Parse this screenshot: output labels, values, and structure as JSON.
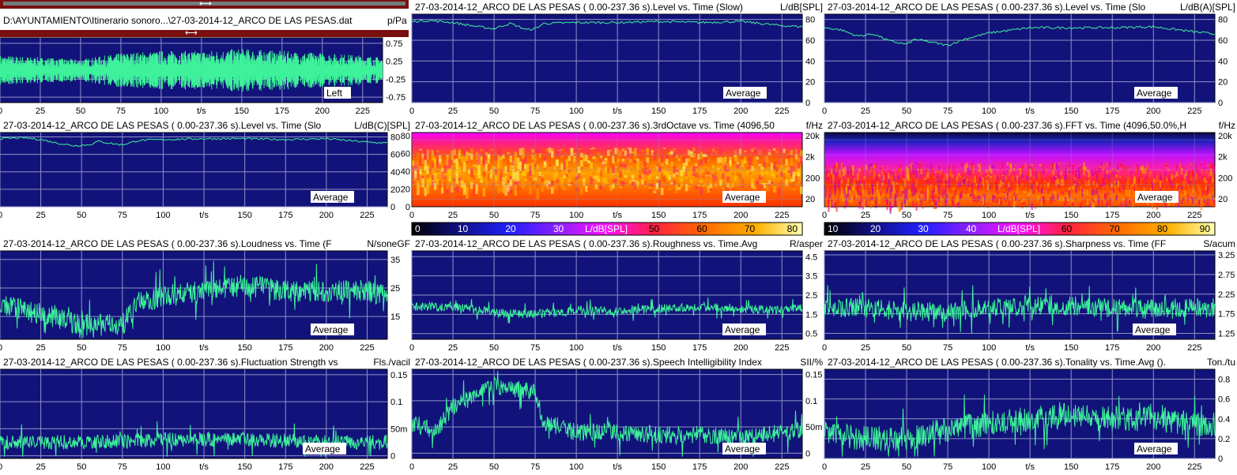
{
  "file": {
    "path": "D:\\AYUNTAMIENTO\\Itinerario sonoro...\\27-03-2014-12_ARCO DE LAS PESAS.dat",
    "unit": "p/Pa"
  },
  "colors": {
    "plot_bg": "#12137a",
    "trace": "#3df29a",
    "grid": "#8f92c8",
    "frame": "#000000"
  },
  "average_label": "Average",
  "x_unit": "t/s",
  "panels": [
    {
      "id": "waveform",
      "title": "",
      "unit": "",
      "badge": "Left"
    },
    {
      "id": "level_slow",
      "title": "27-03-2014-12_ARCO DE LAS PESAS ( 0.00-237.36 s).Level vs. Time (Slow)",
      "unit": "L/dB[SPL]",
      "badge": "Average"
    },
    {
      "id": "level_a",
      "title": "27-03-2014-12_ARCO DE LAS PESAS ( 0.00-237.36 s).Level vs. Time (Slo",
      "unit": "L/dB(A)[SPL]",
      "badge": "Average"
    },
    {
      "id": "level_c",
      "title": "27-03-2014-12_ARCO DE LAS PESAS ( 0.00-237.36 s).Level vs. Time (Slo",
      "unit": "L/dB(C)[SPL]",
      "badge": "Average"
    },
    {
      "id": "third_octave",
      "title": "27-03-2014-12_ARCO DE LAS PESAS ( 0.00-237.36 s).3rdOctave vs. Time (4096,50",
      "unit": "f/Hz",
      "badge": "Average"
    },
    {
      "id": "fft",
      "title": "27-03-2014-12_ARCO DE LAS PESAS ( 0.00-237.36 s).FFT vs. Time (4096,50.0%,H",
      "unit": "f/Hz",
      "badge": "Average"
    },
    {
      "id": "loudness",
      "title": "27-03-2014-12_ARCO DE LAS PESAS ( 0.00-237.36 s).Loudness vs. Time (F",
      "unit": "N/soneGF",
      "badge": "Average"
    },
    {
      "id": "roughness",
      "title": "27-03-2014-12_ARCO DE LAS PESAS ( 0.00-237.36 s).Roughness vs. Time.Avg",
      "unit": "R/asper",
      "badge": "Average"
    },
    {
      "id": "sharpness",
      "title": "27-03-2014-12_ARCO DE LAS PESAS ( 0.00-237.36 s).Sharpness vs. Time (FF",
      "unit": "S/acum",
      "badge": "Average"
    },
    {
      "id": "fluctuation",
      "title": "27-03-2014-12_ARCO DE LAS PESAS ( 0.00-237.36 s).Fluctuation Strength vs",
      "unit": "Fls./vacil",
      "badge": "Average"
    },
    {
      "id": "sii",
      "title": "27-03-2014-12_ARCO DE LAS PESAS ( 0.00-237.36 s).Speech Intelligibility Index",
      "unit": "SII/%",
      "badge": "Average"
    },
    {
      "id": "tonality",
      "title": "27-03-2014-12_ARCO DE LAS PESAS ( 0.00-237.36 s).Tonality vs. Time.Avg ().",
      "unit": "Ton./tu",
      "badge": "Average"
    }
  ],
  "colorbars": [
    {
      "id": "cb_third",
      "labels": [
        "0",
        "10",
        "20",
        "30",
        "L/dB[SPL]",
        "50",
        "60",
        "70",
        "80"
      ]
    },
    {
      "id": "cb_fft",
      "labels": [
        "10",
        "20",
        "30",
        "40",
        "L/dB[SPL]",
        "60",
        "70",
        "80",
        "90"
      ]
    }
  ],
  "chart_data": [
    {
      "type": "line",
      "id": "waveform",
      "x_label": "t/s",
      "x_range": [
        0,
        237.36
      ],
      "x_ticks": [
        "0",
        "25",
        "50",
        "75",
        "100",
        "t/s",
        "150",
        "175",
        "200",
        "225"
      ],
      "y_range": [
        -0.9,
        0.9
      ],
      "y_ticks": [
        "0.75",
        "0.25",
        "-0.25",
        "-0.75"
      ],
      "series": [
        {
          "name": "Left",
          "envelope": [
            [
              0,
              0.35
            ],
            [
              25,
              0.3
            ],
            [
              50,
              0.25
            ],
            [
              75,
              0.4
            ],
            [
              100,
              0.45
            ],
            [
              125,
              0.45
            ],
            [
              150,
              0.5
            ],
            [
              175,
              0.45
            ],
            [
              200,
              0.4
            ],
            [
              225,
              0.35
            ],
            [
              237,
              0.3
            ]
          ]
        }
      ]
    },
    {
      "type": "line",
      "id": "level_slow",
      "x_label": "t/s",
      "x_range": [
        0,
        237.36
      ],
      "x_ticks": [
        "0",
        "25",
        "50",
        "75",
        "100",
        "t/s",
        "150",
        "175",
        "200",
        "225"
      ],
      "y_range": [
        0,
        85
      ],
      "y_ticks": [
        "80",
        "60",
        "40",
        "20",
        "0"
      ],
      "series": [
        {
          "points": [
            [
              0,
              78
            ],
            [
              10,
              79
            ],
            [
              25,
              77
            ],
            [
              40,
              73
            ],
            [
              50,
              71
            ],
            [
              55,
              74
            ],
            [
              60,
              76
            ],
            [
              70,
              70
            ],
            [
              75,
              71
            ],
            [
              80,
              76
            ],
            [
              100,
              77
            ],
            [
              125,
              77
            ],
            [
              150,
              78
            ],
            [
              175,
              77
            ],
            [
              200,
              78
            ],
            [
              225,
              74
            ],
            [
              237,
              73
            ]
          ]
        }
      ]
    },
    {
      "type": "line",
      "id": "level_a",
      "x_label": "t/s",
      "x_range": [
        0,
        237.36
      ],
      "x_ticks": [
        "0",
        "25",
        "50",
        "75",
        "100",
        "t/s",
        "150",
        "175",
        "200",
        "225"
      ],
      "y_range": [
        0,
        85
      ],
      "y_ticks": [
        "80",
        "60",
        "40",
        "20",
        "0"
      ],
      "series": [
        {
          "points": [
            [
              0,
              72
            ],
            [
              10,
              70
            ],
            [
              20,
              64
            ],
            [
              30,
              66
            ],
            [
              40,
              59
            ],
            [
              50,
              56
            ],
            [
              55,
              61
            ],
            [
              65,
              58
            ],
            [
              75,
              55
            ],
            [
              85,
              61
            ],
            [
              100,
              67
            ],
            [
              125,
              72
            ],
            [
              150,
              72
            ],
            [
              175,
              72
            ],
            [
              200,
              73
            ],
            [
              225,
              68
            ],
            [
              237,
              66
            ]
          ]
        }
      ]
    },
    {
      "type": "line",
      "id": "level_c",
      "x_label": "t/s",
      "x_range": [
        0,
        237.36
      ],
      "x_ticks": [
        "0",
        "25",
        "50",
        "75",
        "100",
        "t/s",
        "150",
        "175",
        "200",
        "225"
      ],
      "y_range": [
        0,
        85
      ],
      "y_ticks": [
        "80",
        "60",
        "40",
        "20",
        "0"
      ],
      "series": [
        {
          "points": [
            [
              0,
              78
            ],
            [
              15,
              79
            ],
            [
              25,
              77
            ],
            [
              35,
              73
            ],
            [
              45,
              70
            ],
            [
              55,
              71
            ],
            [
              60,
              75
            ],
            [
              70,
              72
            ],
            [
              75,
              71
            ],
            [
              85,
              76
            ],
            [
              100,
              77
            ],
            [
              125,
              78
            ],
            [
              150,
              78
            ],
            [
              175,
              77
            ],
            [
              200,
              78
            ],
            [
              225,
              74
            ],
            [
              237,
              73
            ]
          ]
        }
      ]
    },
    {
      "type": "heatmap",
      "id": "third_octave",
      "x_label": "t/s",
      "x_range": [
        0,
        237.36
      ],
      "x_ticks": [
        "0",
        "25",
        "50",
        "75",
        "100",
        "t/s",
        "150",
        "175",
        "200",
        "225"
      ],
      "y_ticks": [
        "80",
        "60",
        "40",
        "20",
        "0"
      ],
      "y2_ticks": [
        "20k",
        "2k",
        "200",
        "20"
      ],
      "color_range": [
        0,
        80
      ]
    },
    {
      "type": "heatmap",
      "id": "fft",
      "x_label": "t/s",
      "x_range": [
        0,
        237.36
      ],
      "x_ticks": [
        "0",
        "25",
        "50",
        "75",
        "100",
        "t/s",
        "150",
        "175",
        "200",
        "225"
      ],
      "y2_ticks": [
        "20k",
        "2k",
        "200",
        "20"
      ],
      "color_range": [
        10,
        90
      ]
    },
    {
      "type": "line",
      "id": "loudness",
      "x_label": "t/s",
      "x_range": [
        0,
        237.36
      ],
      "x_ticks": [
        "0",
        "25",
        "50",
        "75",
        "100",
        "t/s",
        "150",
        "175",
        "200",
        "225"
      ],
      "y_range": [
        7,
        38
      ],
      "y_ticks": [
        "35",
        "25",
        "15"
      ],
      "series": [
        {
          "baseline": [
            [
              0,
              19
            ],
            [
              25,
              16
            ],
            [
              50,
              12
            ],
            [
              75,
              12
            ],
            [
              85,
              20
            ],
            [
              100,
              22
            ],
            [
              125,
              24
            ],
            [
              150,
              26
            ],
            [
              175,
              24
            ],
            [
              200,
              24
            ],
            [
              225,
              24
            ],
            [
              237,
              22
            ]
          ]
        }
      ]
    },
    {
      "type": "line",
      "id": "roughness",
      "x_label": "t/s",
      "x_range": [
        0,
        237.36
      ],
      "x_ticks": [
        "0",
        "25",
        "50",
        "75",
        "100",
        "t/s",
        "150",
        "175",
        "200",
        "225"
      ],
      "y_range": [
        0.2,
        4.8
      ],
      "y_ticks": [
        "4.5",
        "3.5",
        "2.5",
        "1.5",
        "0.5"
      ],
      "series": [
        {
          "baseline": [
            [
              0,
              1.9
            ],
            [
              25,
              1.9
            ],
            [
              50,
              1.6
            ],
            [
              75,
              1.5
            ],
            [
              100,
              1.7
            ],
            [
              125,
              1.7
            ],
            [
              150,
              1.8
            ],
            [
              175,
              1.9
            ],
            [
              200,
              1.8
            ],
            [
              225,
              1.7
            ],
            [
              237,
              1.8
            ]
          ]
        }
      ]
    },
    {
      "type": "line",
      "id": "sharpness",
      "x_label": "t/s",
      "x_range": [
        0,
        237.36
      ],
      "x_ticks": [
        "0",
        "25",
        "50",
        "75",
        "100",
        "t/s",
        "150",
        "175",
        "200",
        "225"
      ],
      "y_range": [
        1.1,
        3.35
      ],
      "y_ticks": [
        "3.25",
        "2.75",
        "2.25",
        "1.75",
        "1.25"
      ],
      "series": [
        {
          "baseline": [
            [
              0,
              1.9
            ],
            [
              25,
              1.9
            ],
            [
              50,
              1.8
            ],
            [
              75,
              1.8
            ],
            [
              100,
              1.9
            ],
            [
              125,
              1.95
            ],
            [
              150,
              1.95
            ],
            [
              175,
              1.9
            ],
            [
              200,
              1.9
            ],
            [
              225,
              1.9
            ],
            [
              237,
              1.9
            ]
          ]
        }
      ]
    },
    {
      "type": "line",
      "id": "fluctuation",
      "x_label": "t/s",
      "x_range": [
        0,
        237.36
      ],
      "x_ticks": [
        "0",
        "25",
        "50",
        "75",
        "100",
        "t/s",
        "150",
        "175",
        "200",
        "225"
      ],
      "y_range": [
        -0.005,
        0.16
      ],
      "y_ticks": [
        "0.15",
        "0.1",
        "50m",
        "0"
      ],
      "series": [
        {
          "baseline": [
            [
              0,
              0.025
            ],
            [
              50,
              0.025
            ],
            [
              100,
              0.03
            ],
            [
              150,
              0.03
            ],
            [
              200,
              0.025
            ],
            [
              237,
              0.025
            ]
          ]
        }
      ]
    },
    {
      "type": "line",
      "id": "sii",
      "x_label": "t/s",
      "x_range": [
        0,
        237.36
      ],
      "x_ticks": [
        "0",
        "25",
        "50",
        "75",
        "100",
        "t/s",
        "150",
        "175",
        "200",
        "225"
      ],
      "y_range": [
        -0.01,
        0.16
      ],
      "y_ticks": [
        "0.15",
        "0.1",
        "50m",
        "0"
      ],
      "series": [
        {
          "baseline": [
            [
              0,
              0.06
            ],
            [
              15,
              0.04
            ],
            [
              25,
              0.09
            ],
            [
              40,
              0.11
            ],
            [
              50,
              0.13
            ],
            [
              60,
              0.12
            ],
            [
              75,
              0.12
            ],
            [
              80,
              0.06
            ],
            [
              100,
              0.04
            ],
            [
              125,
              0.04
            ],
            [
              150,
              0.035
            ],
            [
              175,
              0.035
            ],
            [
              200,
              0.03
            ],
            [
              225,
              0.04
            ],
            [
              237,
              0.04
            ]
          ]
        }
      ]
    },
    {
      "type": "line",
      "id": "tonality",
      "x_label": "t/s",
      "x_range": [
        0,
        237.36
      ],
      "x_ticks": [
        "0",
        "25",
        "50",
        "75",
        "100",
        "t/s",
        "150",
        "175",
        "200",
        "225"
      ],
      "y_range": [
        0,
        0.9
      ],
      "y_ticks": [
        "0.8",
        "0.6",
        "0.4",
        "0.2",
        "0"
      ],
      "series": [
        {
          "baseline": [
            [
              0,
              0.25
            ],
            [
              25,
              0.2
            ],
            [
              50,
              0.2
            ],
            [
              75,
              0.3
            ],
            [
              100,
              0.35
            ],
            [
              125,
              0.4
            ],
            [
              150,
              0.45
            ],
            [
              175,
              0.4
            ],
            [
              200,
              0.4
            ],
            [
              225,
              0.35
            ],
            [
              237,
              0.3
            ]
          ]
        }
      ]
    }
  ]
}
